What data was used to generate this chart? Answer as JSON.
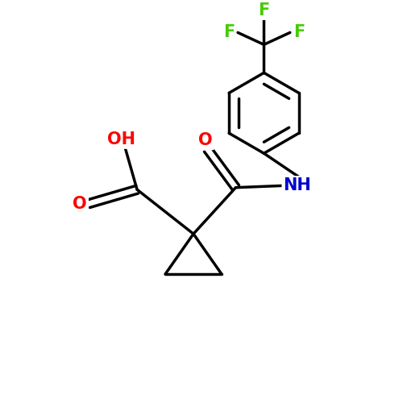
{
  "background_color": "#ffffff",
  "bond_color": "#000000",
  "bond_width": 2.5,
  "font_size_atoms": 15,
  "colors": {
    "C": "#000000",
    "O": "#ff0000",
    "N": "#0000cc",
    "F": "#44cc00"
  },
  "figsize": [
    5.0,
    5.0
  ],
  "dpi": 100,
  "xlim": [
    0,
    10
  ],
  "ylim": [
    0,
    10
  ]
}
